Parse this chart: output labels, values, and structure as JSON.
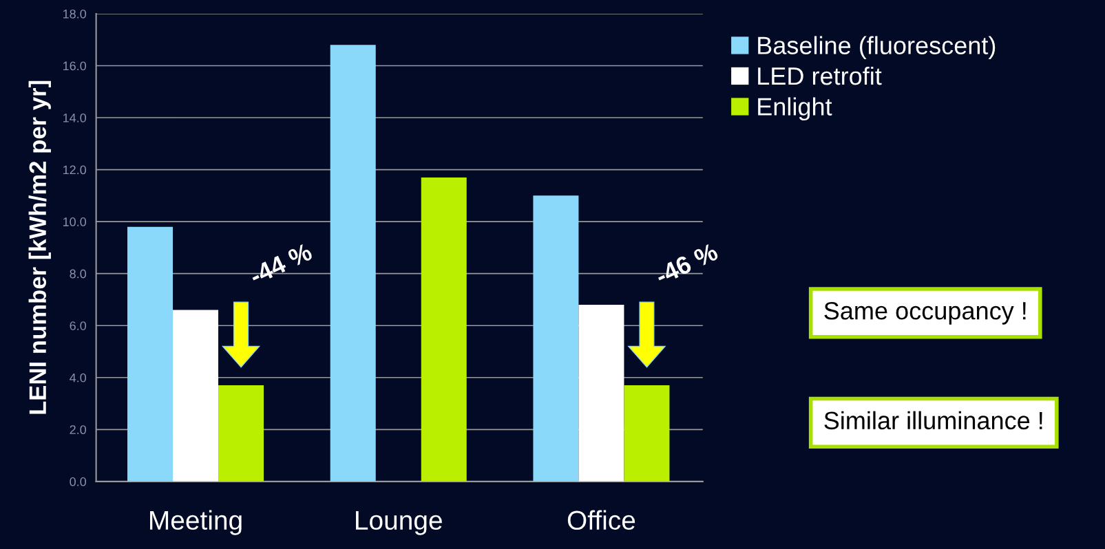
{
  "chart_data": {
    "type": "bar",
    "ylabel": "LENI number [kWh/m2 per yr]",
    "categories": [
      "Meeting",
      "Lounge",
      "Office"
    ],
    "series": [
      {
        "name": "Baseline (fluorescent)",
        "color": "#8ad9fb",
        "values": [
          9.8,
          16.8,
          11.0
        ]
      },
      {
        "name": "LED retrofit",
        "color": "#ffffff",
        "values": [
          6.6,
          null,
          6.8
        ]
      },
      {
        "name": "Enlight",
        "color": "#bbef00",
        "values": [
          3.7,
          11.7,
          3.7
        ]
      }
    ],
    "ylim": [
      0,
      18
    ],
    "yticks": [
      {
        "value": 0,
        "label": "0.0"
      },
      {
        "value": 2,
        "label": "2.0"
      },
      {
        "value": 4,
        "label": "4.0"
      },
      {
        "value": 6,
        "label": "6.0"
      },
      {
        "value": 8,
        "label": "8.0"
      },
      {
        "value": 10,
        "label": "10.0"
      },
      {
        "value": 12,
        "label": "12.0"
      },
      {
        "value": 14,
        "label": "14.0"
      },
      {
        "value": 16,
        "label": "16.0"
      },
      {
        "value": 18,
        "label": "18.0"
      }
    ],
    "grid": "y",
    "legend": "top right",
    "annotations": [
      "-44 %",
      "-46 %",
      "Same occupancy !",
      "Similar illuminance !"
    ]
  }
}
